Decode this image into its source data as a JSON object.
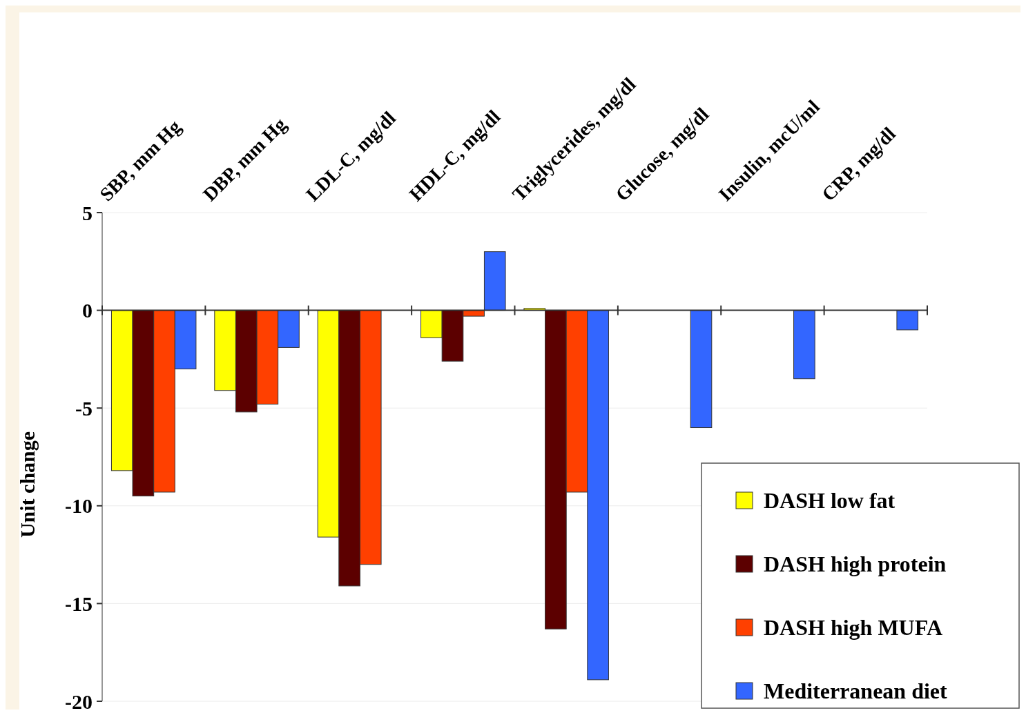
{
  "chart_data": {
    "type": "bar",
    "ylabel": "Unit change",
    "categories": [
      "SBP, mm Hg",
      "DBP, mm Hg",
      "LDL-C, mg/dl",
      "HDL-C, mg/dl",
      "Triglycerides, mg/dl",
      "Glucose, mg/dl",
      "Insulin, mcU/ml",
      "CRP, mg/dl"
    ],
    "series": [
      {
        "name": "DASH low fat",
        "color": "#ffff00",
        "values": [
          -8.2,
          -4.1,
          -11.6,
          -1.4,
          0.1,
          null,
          null,
          null
        ]
      },
      {
        "name": "DASH high protein",
        "color": "#5c0000",
        "values": [
          -9.5,
          -5.2,
          -14.1,
          -2.6,
          -16.3,
          null,
          null,
          null
        ]
      },
      {
        "name": "DASH high MUFA",
        "color": "#ff4000",
        "values": [
          -9.3,
          -4.8,
          -13.0,
          -0.3,
          -9.3,
          null,
          null,
          null
        ]
      },
      {
        "name": "Mediterranean diet",
        "color": "#3366ff",
        "values": [
          -3.0,
          -1.9,
          null,
          3.0,
          -18.9,
          -6.0,
          -3.5,
          -1.0
        ]
      }
    ],
    "ylim": [
      -20,
      5
    ],
    "yticks": [
      -20,
      -15,
      -10,
      -5,
      0,
      5
    ],
    "grid": "y",
    "legend": "bottom right"
  }
}
